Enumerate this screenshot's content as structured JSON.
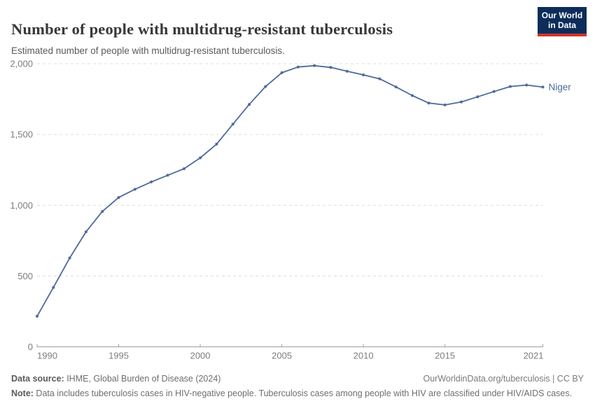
{
  "header": {
    "title": "Number of people with multidrug-resistant tuberculosis",
    "subtitle": "Estimated number of people with multidrug-resistant tuberculosis."
  },
  "logo": {
    "line1": "Our World",
    "line2": "in Data",
    "bg_color": "#0c2d5a",
    "accent_color": "#d0342c"
  },
  "chart_data": {
    "type": "line",
    "title": "Number of people with multidrug-resistant tuberculosis",
    "xlabel": "",
    "ylabel": "",
    "x": [
      1990,
      1991,
      1992,
      1993,
      1994,
      1995,
      1996,
      1997,
      1998,
      1999,
      2000,
      2001,
      2002,
      2003,
      2004,
      2005,
      2006,
      2007,
      2008,
      2009,
      2010,
      2011,
      2012,
      2013,
      2014,
      2015,
      2016,
      2017,
      2018,
      2019,
      2020,
      2021
    ],
    "series": [
      {
        "name": "Niger",
        "color": "#4c6a9c",
        "values": [
          216,
          420,
          628,
          813,
          956,
          1055,
          1113,
          1165,
          1212,
          1258,
          1335,
          1432,
          1573,
          1712,
          1839,
          1936,
          1977,
          1986,
          1974,
          1947,
          1921,
          1893,
          1836,
          1775,
          1722,
          1709,
          1730,
          1766,
          1803,
          1839,
          1849,
          1835
        ]
      }
    ],
    "ylim": [
      0,
      2000
    ],
    "yticks": [
      0,
      500,
      1000,
      1500,
      2000
    ],
    "xticks": [
      1990,
      1995,
      2000,
      2005,
      2010,
      2015,
      2021
    ],
    "grid": "horizontal-dashed",
    "legend_position": "end-of-line-label",
    "colors": {
      "grid": "#dcdcdc",
      "axis": "#9d9d9d",
      "tick_text": "#7d7d7d"
    }
  },
  "footer": {
    "data_source_label": "Data source:",
    "data_source_value": " IHME, Global Burden of Disease (2024)",
    "link": "OurWorldinData.org/tuberculosis | CC BY",
    "note_label": "Note:",
    "note_value": " Data includes tuberculosis cases in HIV-negative people. Tuberculosis cases among people with HIV are classified under HIV/AIDS cases."
  }
}
